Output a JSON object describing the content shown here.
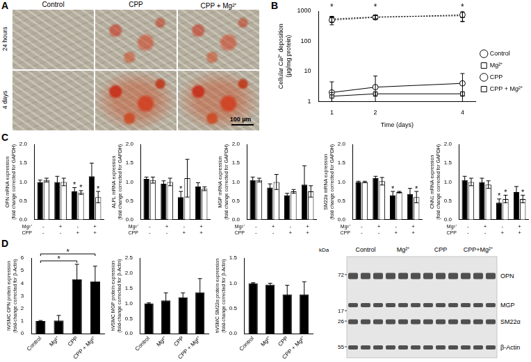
{
  "panel_labels": [
    "A",
    "B",
    "C",
    "D"
  ],
  "micrographs": {
    "columns": [
      "Control",
      "CPP",
      "CPP + Mg²⁺"
    ],
    "rows": [
      "24 hours",
      "4 days"
    ],
    "scale_bar": "100 µm"
  },
  "chart_data": [
    {
      "type": "line",
      "xlabel": "Time (days)",
      "ylabel": [
        "Cellular Ca²⁺ deposition",
        "(µg/mg protein)"
      ],
      "log": "y",
      "grid": false,
      "legend": "right",
      "x": [
        1,
        2,
        4
      ],
      "xlim": [
        0.7,
        4.3
      ],
      "xticks": [
        1,
        2,
        4
      ],
      "ylim": [
        1,
        1000
      ],
      "yticks": [
        1,
        10,
        100,
        1000
      ],
      "series": [
        {
          "name": "Control",
          "color": "#000000",
          "marker": "circle",
          "line_style": "solid",
          "values": [
            2,
            3,
            4
          ],
          "errors": [
            2.5,
            4,
            4.5
          ]
        },
        {
          "name": "Mg²⁺",
          "color": "#000000",
          "marker": "square",
          "line_style": "solid",
          "values": [
            1.5,
            1.8,
            1.8
          ],
          "errors": [
            0.5,
            0.3,
            0.3
          ]
        },
        {
          "name": "CPP",
          "color": "#000000",
          "marker": "circle",
          "line_style": "dotted",
          "values": [
            500,
            620,
            750
          ],
          "errors": [
            150,
            100,
            300
          ]
        },
        {
          "name": "CPP + Mg²⁺",
          "color": "#000000",
          "marker": "square",
          "line_style": "dotted",
          "values": [
            550,
            640,
            700
          ],
          "errors": [
            120,
            80,
            250
          ]
        }
      ],
      "annotations": [
        {
          "x": 1,
          "text": "*"
        },
        {
          "x": 2,
          "text": "*"
        },
        {
          "x": 4,
          "text": "*"
        }
      ]
    },
    {
      "type": "bar",
      "grid": false,
      "ylabel": [
        "OPN mRNA expression",
        "(fold change corrected for GAPDH)"
      ],
      "categories": [
        [
          "-",
          "-"
        ],
        [
          "+",
          "-"
        ],
        [
          "-",
          "+"
        ],
        [
          "+",
          "+"
        ]
      ],
      "row_labels": [
        "Mg²⁺",
        "CPP"
      ],
      "ylim": [
        0,
        2
      ],
      "yticks": [
        {
          "value": 0,
          "label": "0.0"
        },
        {
          "value": 0.5,
          "label": "0.5"
        },
        {
          "value": 1,
          "label": "1.0"
        },
        {
          "value": 1.5,
          "label": "1.5"
        },
        {
          "value": 2,
          "label": "2.0"
        }
      ],
      "series": [
        {
          "color": "#000000",
          "values": [
            1.0,
            1.0,
            0.75,
            1.15
          ],
          "errors": [
            0.05,
            0.15,
            0.1,
            0.35
          ]
        },
        {
          "color": "#ffffff",
          "values": [
            1.05,
            1.0,
            0.72,
            0.6
          ],
          "errors": [
            0.05,
            0.1,
            0.05,
            0.15
          ]
        }
      ],
      "annotations": [
        {
          "category": 2,
          "series": 0,
          "text": "*"
        },
        {
          "category": 2,
          "series": 1,
          "text": "*"
        },
        {
          "category": 3,
          "series": 1,
          "text": "*"
        }
      ]
    },
    {
      "type": "bar",
      "grid": false,
      "ylabel": [
        "ALPL mRNA expression",
        "(fold change corrected for GAPDH)"
      ],
      "categories": [
        [
          "-",
          "-"
        ],
        [
          "+",
          "-"
        ],
        [
          "-",
          "+"
        ],
        [
          "+",
          "+"
        ]
      ],
      "row_labels": [
        "Mg²⁺",
        "CPP"
      ],
      "ylim": [
        0,
        2
      ],
      "yticks": [
        {
          "value": 0,
          "label": "0.0"
        },
        {
          "value": 0.5,
          "label": "0.5"
        },
        {
          "value": 1,
          "label": "1.0"
        },
        {
          "value": 1.5,
          "label": "1.5"
        },
        {
          "value": 2,
          "label": "2.0"
        }
      ],
      "series": [
        {
          "color": "#000000",
          "values": [
            1.08,
            0.95,
            0.6,
            0.88
          ],
          "errors": [
            0.05,
            0.08,
            0.15,
            0.1
          ]
        },
        {
          "color": "#ffffff",
          "values": [
            1.05,
            1.0,
            1.1,
            0.82
          ],
          "errors": [
            0.08,
            0.1,
            0.5,
            0.05
          ]
        }
      ],
      "annotations": [
        {
          "category": 2,
          "series": 0,
          "text": "*"
        }
      ]
    },
    {
      "type": "bar",
      "grid": false,
      "ylabel": [
        "MGP mRNA expression",
        "(fold change corrected for GAPDH)"
      ],
      "categories": [
        [
          "-",
          "-"
        ],
        [
          "+",
          "-"
        ],
        [
          "-",
          "+"
        ],
        [
          "+",
          "+"
        ]
      ],
      "row_labels": [
        "Mg²⁺",
        "CPP"
      ],
      "ylim": [
        0,
        2
      ],
      "yticks": [
        {
          "value": 0,
          "label": "0.0"
        },
        {
          "value": 0.5,
          "label": "0.5"
        },
        {
          "value": 1,
          "label": "1.0"
        },
        {
          "value": 1.5,
          "label": "1.5"
        },
        {
          "value": 2,
          "label": "2.0"
        }
      ],
      "series": [
        {
          "color": "#000000",
          "values": [
            1.05,
            0.85,
            0.65,
            0.93
          ],
          "errors": [
            0.08,
            0.1,
            0.05,
            0.5
          ]
        },
        {
          "color": "#ffffff",
          "values": [
            1.05,
            1.0,
            0.75,
            0.75
          ],
          "errors": [
            0.05,
            0.2,
            0.05,
            0.15
          ]
        }
      ],
      "annotations": []
    },
    {
      "type": "bar",
      "grid": false,
      "ylabel": [
        "SM22α mRNA expression",
        "(fold change corrected for GAPDH)"
      ],
      "categories": [
        [
          "-",
          "-"
        ],
        [
          "+",
          "-"
        ],
        [
          "-",
          "+"
        ],
        [
          "+",
          "+"
        ]
      ],
      "row_labels": [
        "Mg²⁺",
        "CPP"
      ],
      "ylim": [
        0,
        2
      ],
      "yticks": [
        {
          "value": 0,
          "label": "0.0"
        },
        {
          "value": 0.5,
          "label": "0.5"
        },
        {
          "value": 1,
          "label": "1.0"
        },
        {
          "value": 1.5,
          "label": "1.5"
        },
        {
          "value": 2,
          "label": "2.0"
        }
      ],
      "series": [
        {
          "color": "#000000",
          "values": [
            1.0,
            1.1,
            0.65,
            0.68
          ],
          "errors": [
            0.02,
            0.05,
            0.1,
            0.15
          ]
        },
        {
          "color": "#ffffff",
          "values": [
            1.0,
            1.02,
            0.73,
            0.6
          ],
          "errors": [
            0.02,
            0.1,
            0.02,
            0.15
          ]
        }
      ],
      "annotations": [
        {
          "category": 2,
          "series": 0,
          "text": "*"
        },
        {
          "category": 3,
          "series": 1,
          "text": "*"
        }
      ]
    },
    {
      "type": "bar",
      "grid": false,
      "ylabel": [
        "CNN1 mRNA expression",
        "(fold change corrected for GAPDH)"
      ],
      "categories": [
        [
          "-",
          "-"
        ],
        [
          "+",
          "-"
        ],
        [
          "-",
          "+"
        ],
        [
          "+",
          "+"
        ]
      ],
      "row_labels": [
        "Mg²⁺",
        "CPP"
      ],
      "ylim": [
        0,
        2
      ],
      "yticks": [
        {
          "value": 0,
          "label": "0.0"
        },
        {
          "value": 0.5,
          "label": "0.5"
        },
        {
          "value": 1,
          "label": "1.0"
        },
        {
          "value": 1.5,
          "label": "1.5"
        },
        {
          "value": 2,
          "label": "2.0"
        }
      ],
      "series": [
        {
          "color": "#000000",
          "values": [
            1.05,
            1.0,
            0.45,
            0.73
          ],
          "errors": [
            0.1,
            0.1,
            0.1,
            0.15
          ]
        },
        {
          "color": "#ffffff",
          "values": [
            1.0,
            0.93,
            0.55,
            0.55
          ],
          "errors": [
            0.1,
            0.1,
            0.1,
            0.1
          ]
        }
      ],
      "annotations": [
        {
          "category": 2,
          "series": 0,
          "text": "*"
        },
        {
          "category": 2,
          "series": 1,
          "text": "*"
        },
        {
          "category": 3,
          "series": 1,
          "text": "*"
        }
      ]
    },
    {
      "type": "bar",
      "grid": false,
      "ylabel": [
        "hVSMC OPN protein expression",
        "(fold-change corrected for β-Actin)"
      ],
      "categories": [
        "Control",
        "Mg²⁺",
        "CPP",
        "CPP + Mg²⁺"
      ],
      "ylim": [
        0,
        6
      ],
      "yticks": [
        0,
        1,
        2,
        3,
        4,
        5,
        6
      ],
      "color": "#000000",
      "values": [
        1.0,
        1.05,
        4.3,
        4.15
      ],
      "errors": [
        0.05,
        0.4,
        1.2,
        1.2
      ],
      "brackets": [
        {
          "from": 0,
          "to": 2,
          "text": "*"
        },
        {
          "from": 0,
          "to": 3,
          "text": "*"
        }
      ]
    },
    {
      "type": "bar",
      "grid": false,
      "ylabel": [
        "hVSMC MGP protein expression",
        "(fold-change corrected for β-Actin)"
      ],
      "categories": [
        "Control",
        "Mg²⁺",
        "CPP",
        "CPP + Mg²⁺"
      ],
      "ylim": [
        0,
        2.5
      ],
      "yticks": [
        {
          "value": 0,
          "label": "0.0"
        },
        {
          "value": 0.5,
          "label": "0.5"
        },
        {
          "value": 1,
          "label": "1.0"
        },
        {
          "value": 1.5,
          "label": "1.5"
        },
        {
          "value": 2,
          "label": "2.0"
        },
        {
          "value": 2.5,
          "label": "2.5"
        }
      ],
      "color": "#000000",
      "values": [
        1.0,
        1.1,
        1.2,
        1.37
      ],
      "errors": [
        0.02,
        0.25,
        0.15,
        0.45
      ]
    },
    {
      "type": "bar",
      "grid": false,
      "ylabel": [
        "hVSMC SM22α protein expression",
        "(fold-change corrected for β-Actin)"
      ],
      "categories": [
        "Control",
        "Mg²⁺",
        "CPP",
        "CPP + Mg²⁺"
      ],
      "ylim": [
        0,
        1.5
      ],
      "yticks": [
        {
          "value": 0,
          "label": "0.0"
        },
        {
          "value": 0.5,
          "label": "0.5"
        },
        {
          "value": 1,
          "label": "1.0"
        },
        {
          "value": 1.5,
          "label": "1.5"
        }
      ],
      "color": "#000000",
      "values": [
        1.0,
        0.97,
        0.78,
        0.78
      ],
      "errors": [
        0.01,
        0.03,
        0.18,
        0.25
      ]
    }
  ],
  "blot": {
    "unit": "kDa",
    "markers": [
      72,
      17,
      26,
      55
    ],
    "lanes": [
      "Control",
      "Mg²⁺",
      "CPP",
      "CPP+Mg²⁺"
    ],
    "bands": [
      "OPN",
      "MGP",
      "SM22α",
      "β-Actin"
    ]
  }
}
